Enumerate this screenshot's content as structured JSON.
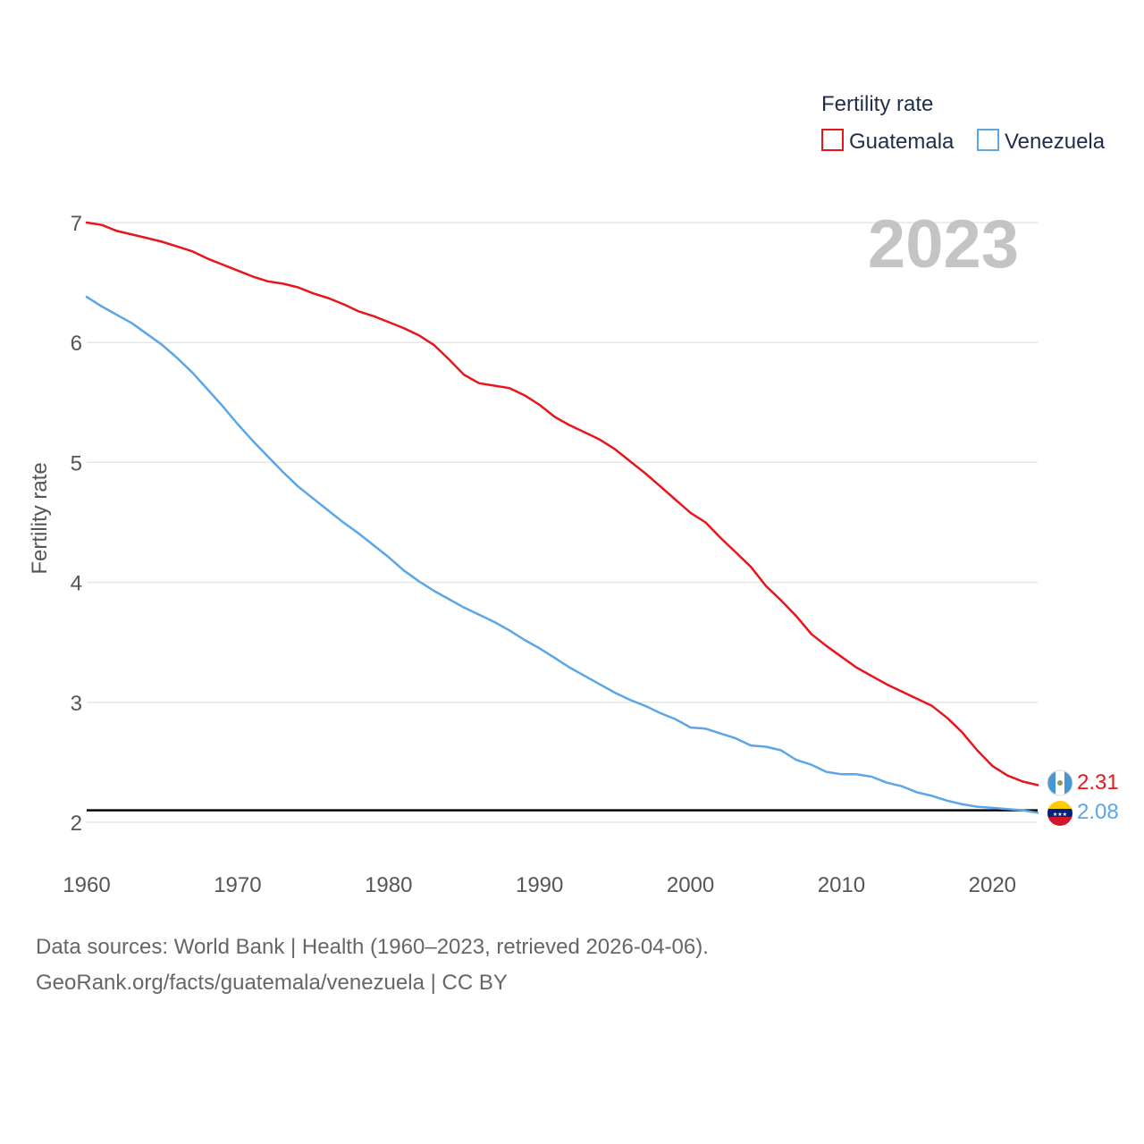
{
  "legend": {
    "title": "Fertility rate",
    "entries": [
      {
        "label": "Guatemala",
        "color": "#e8151b"
      },
      {
        "label": "Venezuela",
        "color": "#5aa6e6"
      }
    ]
  },
  "year_stamp": "2023",
  "footer": {
    "line1": "Data sources: World Bank | Health (1960–2023, retrieved 2026-04-06).",
    "line2": "GeoRank.org/facts/guatemala/venezuela | CC BY"
  },
  "chart_data": {
    "type": "line",
    "title": "Fertility rate",
    "xlabel": "",
    "ylabel": "Fertility rate",
    "xlim": [
      1960,
      2023
    ],
    "ylim": [
      2,
      7
    ],
    "xticks": [
      1960,
      1970,
      1980,
      1990,
      2000,
      2010,
      2020
    ],
    "yticks": [
      2,
      3,
      4,
      5,
      6,
      7
    ],
    "grid": true,
    "legend_position": "top-right",
    "reference_line": 2.1,
    "x": [
      1960,
      1961,
      1962,
      1963,
      1964,
      1965,
      1966,
      1967,
      1968,
      1969,
      1970,
      1971,
      1972,
      1973,
      1974,
      1975,
      1976,
      1977,
      1978,
      1979,
      1980,
      1981,
      1982,
      1983,
      1984,
      1985,
      1986,
      1987,
      1988,
      1989,
      1990,
      1991,
      1992,
      1993,
      1994,
      1995,
      1996,
      1997,
      1998,
      1999,
      2000,
      2001,
      2002,
      2003,
      2004,
      2005,
      2006,
      2007,
      2008,
      2009,
      2010,
      2011,
      2012,
      2013,
      2014,
      2015,
      2016,
      2017,
      2018,
      2019,
      2020,
      2021,
      2022,
      2023
    ],
    "series": [
      {
        "name": "Guatemala",
        "color": "#e8151b",
        "end_label": "2.31",
        "values": [
          7.0,
          6.98,
          6.93,
          6.9,
          6.87,
          6.84,
          6.8,
          6.76,
          6.7,
          6.65,
          6.6,
          6.55,
          6.51,
          6.49,
          6.46,
          6.41,
          6.37,
          6.32,
          6.26,
          6.22,
          6.17,
          6.12,
          6.06,
          5.98,
          5.86,
          5.73,
          5.66,
          5.64,
          5.62,
          5.56,
          5.48,
          5.38,
          5.31,
          5.25,
          5.19,
          5.11,
          5.01,
          4.91,
          4.8,
          4.69,
          4.58,
          4.5,
          4.37,
          4.25,
          4.13,
          3.97,
          3.85,
          3.72,
          3.57,
          3.47,
          3.38,
          3.29,
          3.22,
          3.15,
          3.09,
          3.03,
          2.97,
          2.87,
          2.75,
          2.6,
          2.47,
          2.39,
          2.34,
          2.31
        ]
      },
      {
        "name": "Venezuela",
        "color": "#5aa6e6",
        "end_label": "2.08",
        "values": [
          6.38,
          6.3,
          6.23,
          6.16,
          6.07,
          5.98,
          5.87,
          5.75,
          5.61,
          5.47,
          5.32,
          5.18,
          5.05,
          4.92,
          4.8,
          4.7,
          4.6,
          4.5,
          4.41,
          4.31,
          4.21,
          4.1,
          4.01,
          3.93,
          3.86,
          3.79,
          3.73,
          3.67,
          3.6,
          3.52,
          3.45,
          3.37,
          3.29,
          3.22,
          3.15,
          3.08,
          3.02,
          2.97,
          2.91,
          2.86,
          2.79,
          2.78,
          2.74,
          2.7,
          2.64,
          2.63,
          2.6,
          2.52,
          2.48,
          2.42,
          2.4,
          2.4,
          2.38,
          2.33,
          2.3,
          2.25,
          2.22,
          2.18,
          2.15,
          2.13,
          2.12,
          2.11,
          2.1,
          2.08
        ]
      }
    ]
  }
}
